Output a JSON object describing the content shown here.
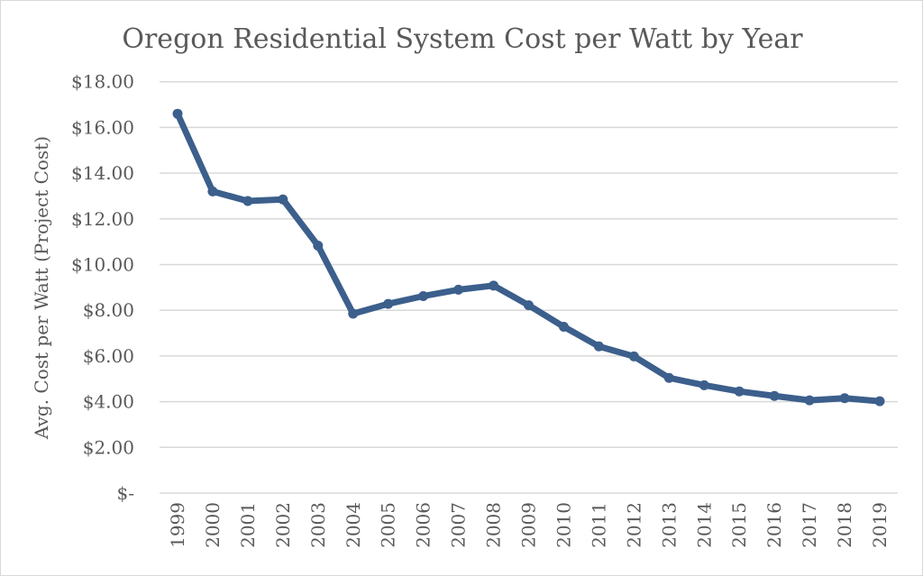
{
  "chart_data": {
    "type": "line",
    "title": "Oregon Residential System Cost per Watt by Year",
    "xlabel": "",
    "ylabel": "Avg. Cost per Watt (Project Cost)",
    "categories": [
      "1999",
      "2000",
      "2001",
      "2002",
      "2003",
      "2004",
      "2005",
      "2006",
      "2007",
      "2008",
      "2009",
      "2010",
      "2011",
      "2012",
      "2013",
      "2014",
      "2015",
      "2016",
      "2017",
      "2018",
      "2019"
    ],
    "series": [
      {
        "values": [
          16.6,
          13.2,
          12.78,
          12.85,
          10.83,
          7.85,
          8.28,
          8.62,
          8.9,
          9.08,
          8.22,
          7.28,
          6.42,
          5.98,
          5.04,
          4.72,
          4.45,
          4.25,
          4.06,
          4.15,
          4.02
        ]
      }
    ],
    "ylim": [
      0,
      18
    ],
    "yticks": [
      0,
      2,
      4,
      6,
      8,
      10,
      12,
      14,
      16,
      18
    ],
    "ytick_labels": [
      "$-",
      "$2.00",
      "$4.00",
      "$6.00",
      "$8.00",
      "$10.00",
      "$12.00",
      "$14.00",
      "$16.00",
      "$18.00"
    ],
    "grid": true,
    "legend": "none",
    "colors": {
      "line": "#3c5f8c",
      "grid": "#d9d9d9",
      "text": "#595959"
    }
  }
}
